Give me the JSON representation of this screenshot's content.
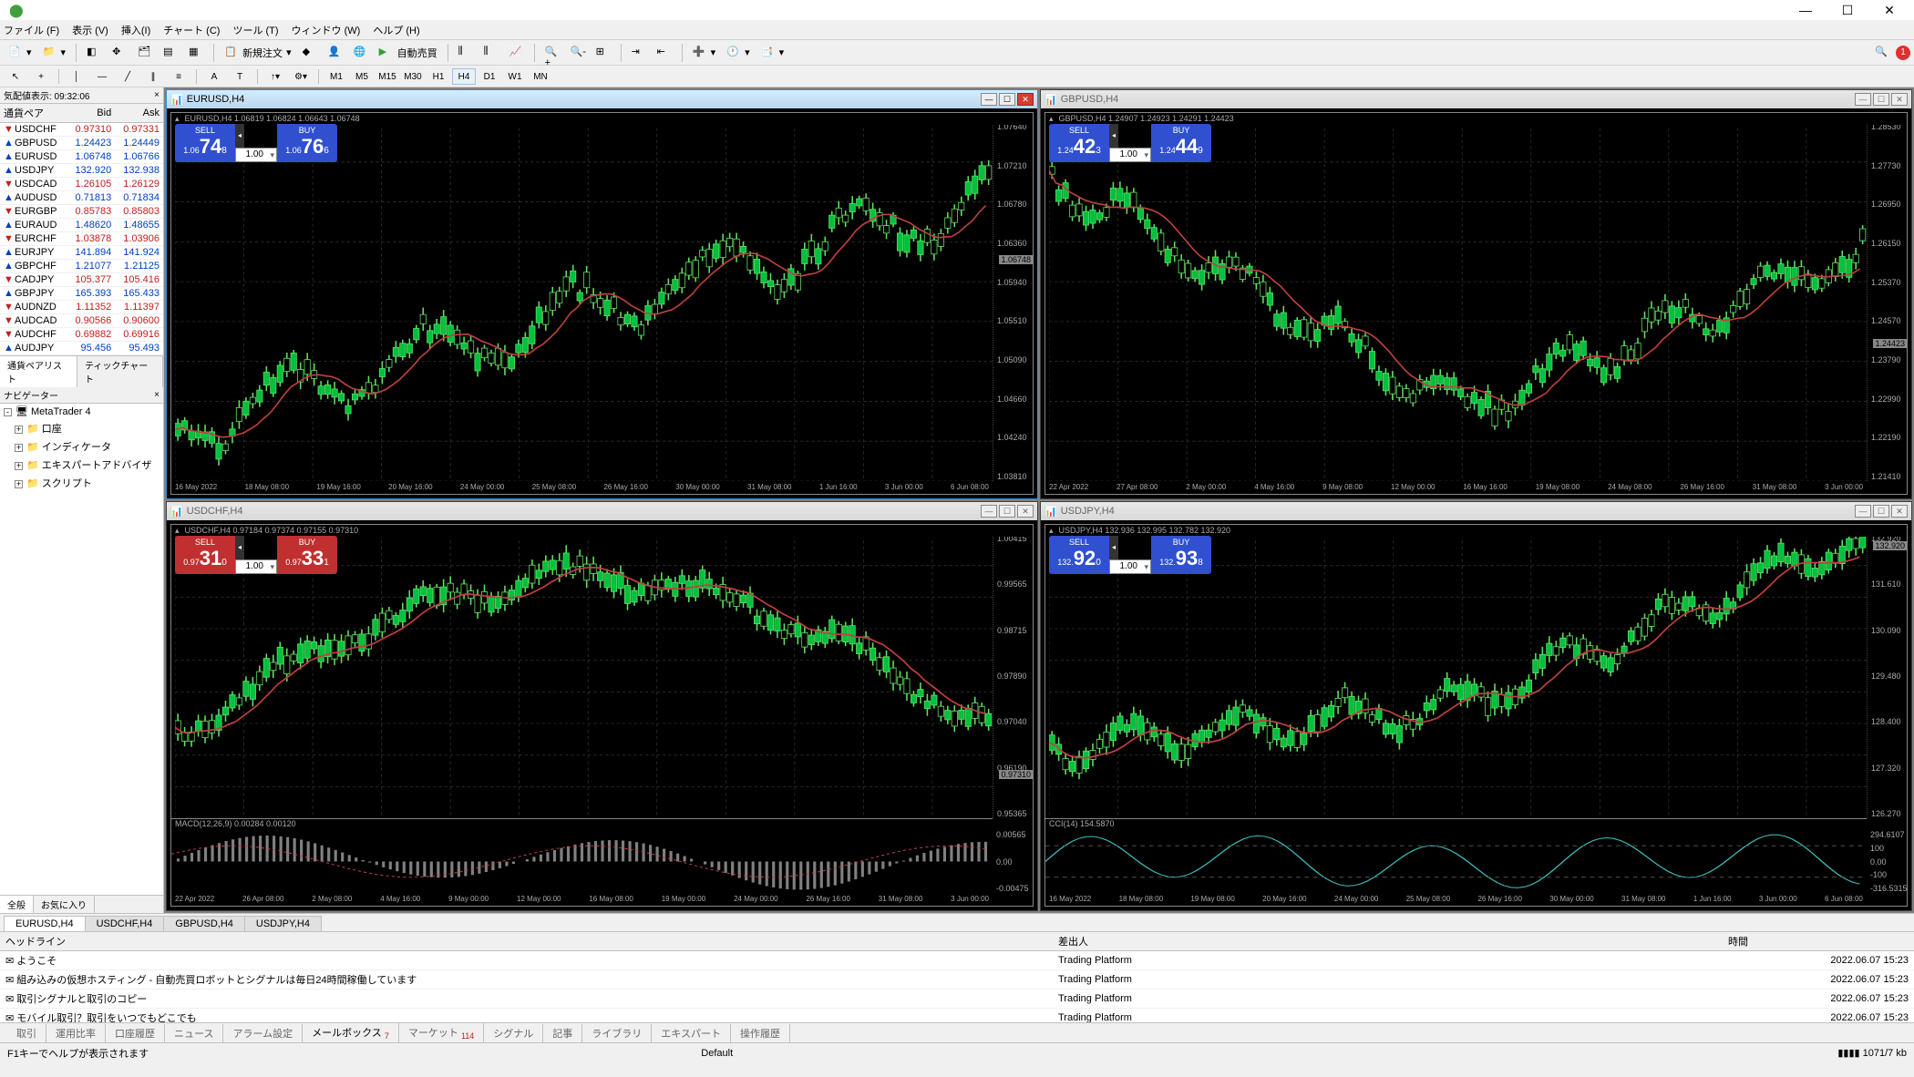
{
  "colors": {
    "up": "#00c040",
    "down": "#e04040",
    "bg": "#000000",
    "grid": "#303030",
    "ma": "#c04040",
    "wick": "#60e060",
    "blue": "#3050d0",
    "red": "#c03030",
    "cci": "#40c0c0"
  },
  "titlebar": {
    "min": "—",
    "max": "☐",
    "close": "✕"
  },
  "menu": [
    "ファイル (F)",
    "表示 (V)",
    "挿入(I)",
    "チャート (C)",
    "ツール (T)",
    "ウィンドウ (W)",
    "ヘルプ (H)"
  ],
  "toolbar1": {
    "new_order": "新規注文",
    "auto_trade": "自動売買",
    "badge": "1"
  },
  "timeframes": [
    "M1",
    "M5",
    "M15",
    "M30",
    "H1",
    "H4",
    "D1",
    "W1",
    "MN"
  ],
  "tf_active": "H4",
  "market": {
    "title": "気配値表示: 09:32:06",
    "cols": [
      "通貨ペア",
      "Bid",
      "Ask"
    ],
    "rows": [
      {
        "sym": "USDCHF",
        "bid": "0.97310",
        "ask": "0.97331",
        "dir": "down"
      },
      {
        "sym": "GBPUSD",
        "bid": "1.24423",
        "ask": "1.24449",
        "dir": "up"
      },
      {
        "sym": "EURUSD",
        "bid": "1.06748",
        "ask": "1.06766",
        "dir": "up"
      },
      {
        "sym": "USDJPY",
        "bid": "132.920",
        "ask": "132.938",
        "dir": "up"
      },
      {
        "sym": "USDCAD",
        "bid": "1.26105",
        "ask": "1.26129",
        "dir": "down"
      },
      {
        "sym": "AUDUSD",
        "bid": "0.71813",
        "ask": "0.71834",
        "dir": "up"
      },
      {
        "sym": "EURGBP",
        "bid": "0.85783",
        "ask": "0.85803",
        "dir": "down"
      },
      {
        "sym": "EURAUD",
        "bid": "1.48620",
        "ask": "1.48655",
        "dir": "up"
      },
      {
        "sym": "EURCHF",
        "bid": "1.03878",
        "ask": "1.03906",
        "dir": "down"
      },
      {
        "sym": "EURJPY",
        "bid": "141.894",
        "ask": "141.924",
        "dir": "up"
      },
      {
        "sym": "GBPCHF",
        "bid": "1.21077",
        "ask": "1.21125",
        "dir": "up"
      },
      {
        "sym": "CADJPY",
        "bid": "105.377",
        "ask": "105.416",
        "dir": "down"
      },
      {
        "sym": "GBPJPY",
        "bid": "165.393",
        "ask": "165.433",
        "dir": "up"
      },
      {
        "sym": "AUDNZD",
        "bid": "1.11352",
        "ask": "1.11397",
        "dir": "down"
      },
      {
        "sym": "AUDCAD",
        "bid": "0.90566",
        "ask": "0.90600",
        "dir": "down"
      },
      {
        "sym": "AUDCHF",
        "bid": "0.69882",
        "ask": "0.69916",
        "dir": "down"
      },
      {
        "sym": "AUDJPY",
        "bid": "95.456",
        "ask": "95.493",
        "dir": "up"
      }
    ],
    "tabs": [
      "通貨ペアリスト",
      "ティックチャート"
    ]
  },
  "navigator": {
    "title": "ナビゲーター",
    "root": "MetaTrader 4",
    "items": [
      "口座",
      "インディケータ",
      "エキスパートアドバイザ",
      "スクリプト"
    ],
    "tabs": [
      "全般",
      "お気に入り"
    ]
  },
  "charts": [
    {
      "id": "eurusd",
      "title": "EURUSD,H4",
      "info": "EURUSD,H4  1.06819 1.06824 1.06643 1.06748",
      "active": true,
      "sell": {
        "lbl": "SELL",
        "pre": "1.06",
        "big": "74",
        "sup": "8",
        "style": "blue"
      },
      "buy": {
        "lbl": "BUY",
        "pre": "1.06",
        "big": "76",
        "sup": "6",
        "style": "blue"
      },
      "vol": "1.00",
      "ylabels": [
        "1.07640",
        "1.07210",
        "1.06780",
        "1.06360",
        "1.05940",
        "1.05510",
        "1.05090",
        "1.04660",
        "1.04240",
        "1.03810"
      ],
      "price_tag": {
        "val": "1.06748",
        "pct": 35
      },
      "xlabels": [
        "16 May 2022",
        "18 May 08:00",
        "19 May 16:00",
        "20 May 16:00",
        "24 May 00:00",
        "25 May 08:00",
        "26 May 16:00",
        "30 May 00:00",
        "31 May 08:00",
        "1 Jun 16:00",
        "3 Jun 00:00",
        "6 Jun 08:00"
      ],
      "shape": "uptrend",
      "ma": true
    },
    {
      "id": "gbpusd",
      "title": "GBPUSD,H4",
      "info": "GBPUSD,H4  1.24907 1.24923 1.24291 1.24423",
      "active": false,
      "sell": {
        "lbl": "SELL",
        "pre": "1.24",
        "big": "42",
        "sup": "3",
        "style": "blue"
      },
      "buy": {
        "lbl": "BUY",
        "pre": "1.24",
        "big": "44",
        "sup": "9",
        "style": "blue"
      },
      "vol": "1.00",
      "ylabels": [
        "1.28530",
        "1.27730",
        "1.26950",
        "1.26150",
        "1.25370",
        "1.24570",
        "1.23790",
        "1.22990",
        "1.22190",
        "1.21410"
      ],
      "price_tag": {
        "val": "1.24423",
        "pct": 57
      },
      "xlabels": [
        "22 Apr 2022",
        "27 Apr 08:00",
        "2 May 00:00",
        "4 May 16:00",
        "9 May 08:00",
        "12 May 00:00",
        "16 May 16:00",
        "19 May 08:00",
        "24 May 08:00",
        "26 May 16:00",
        "31 May 08:00",
        "3 Jun 00:00"
      ],
      "shape": "vshape",
      "ma": true
    },
    {
      "id": "usdchf",
      "title": "USDCHF,H4",
      "info": "USDCHF,H4  0.97184 0.97374 0.97155 0.97310",
      "active": false,
      "sell": {
        "lbl": "SELL",
        "pre": "0.97",
        "big": "31",
        "sup": "0",
        "style": "red"
      },
      "buy": {
        "lbl": "BUY",
        "pre": "0.97",
        "big": "33",
        "sup": "1",
        "style": "red"
      },
      "vol": "1.00",
      "ylabels": [
        "1.00415",
        "0.99565",
        "0.98715",
        "0.97890",
        "0.97040",
        "0.96190",
        "0.95365"
      ],
      "price_tag": {
        "val": "0.97310",
        "pct": 62
      },
      "xlabels": [
        "22 Apr 2022",
        "26 Apr 08:00",
        "2 May 08:00",
        "4 May 16:00",
        "9 May 00:00",
        "12 May 00:00",
        "16 May 08:00",
        "19 May 00:00",
        "24 May 00:00",
        "26 May 16:00",
        "31 May 08:00",
        "3 Jun 00:00"
      ],
      "shape": "humpdown",
      "ma": false,
      "indicator": {
        "name": "MACD(12,26,9)",
        "vals": "0.00284 0.00120",
        "axis": [
          "0.00565",
          "0.00",
          "-0.00475"
        ],
        "type": "macd"
      }
    },
    {
      "id": "usdjpy",
      "title": "USDJPY,H4",
      "info": "USDJPY,H4  132.936 132.995 132.782 132.920",
      "active": false,
      "sell": {
        "lbl": "SELL",
        "pre": "132.",
        "big": "92",
        "sup": "0",
        "style": "blue"
      },
      "buy": {
        "lbl": "BUY",
        "pre": "132.",
        "big": "93",
        "sup": "8",
        "style": "blue"
      },
      "vol": "1.00",
      "ylabels": [
        "132.920",
        "131.610",
        "130.090",
        "129.480",
        "128.400",
        "127.320",
        "126.270"
      ],
      "price_tag": {
        "val": "132.920",
        "pct": 2
      },
      "xlabels": [
        "16 May 2022",
        "18 May 08:00",
        "19 May 08:00",
        "20 May 16:00",
        "24 May 00:00",
        "25 May 08:00",
        "26 May 16:00",
        "30 May 00:00",
        "31 May 08:00",
        "1 Jun 16:00",
        "3 Jun 00:00",
        "6 Jun 08:00"
      ],
      "shape": "rise",
      "ma": false,
      "indicator": {
        "name": "CCI(14)",
        "vals": "154.5870",
        "axis": [
          "294.6107",
          "100",
          "0.00",
          "-100",
          "-316.5315"
        ],
        "type": "cci"
      }
    }
  ],
  "chart_tabs": [
    "EURUSD,H4",
    "USDCHF,H4",
    "GBPUSD,H4",
    "USDJPY,H4"
  ],
  "chart_tab_active": "EURUSD,H4",
  "news": {
    "cols": [
      "ヘッドライン",
      "差出人",
      "時間"
    ],
    "rows": [
      {
        "h": "ようこそ",
        "s": "Trading Platform",
        "t": "2022.06.07 15:23"
      },
      {
        "h": "組み込みの仮想ホスティング - 自動売買ロボットとシグナルは毎日24時間稼働しています",
        "s": "Trading Platform",
        "t": "2022.06.07 15:23"
      },
      {
        "h": "取引シグナルと取引のコピー",
        "s": "Trading Platform",
        "t": "2022.06.07 15:23"
      },
      {
        "h": "モバイル取引？取引をいつでもどこでも",
        "s": "Trading Platform",
        "t": "2022.06.07 15:23"
      }
    ]
  },
  "terminal_tabs": [
    "取引",
    "運用比率",
    "口座履歴",
    "ニュース",
    "アラーム設定",
    "メールボックス",
    "マーケット",
    "シグナル",
    "記事",
    "ライブラリ",
    "エキスパート",
    "操作履歴"
  ],
  "terminal_active": "メールボックス",
  "terminal_badges": {
    "メールボックス": "7",
    "マーケット": "114"
  },
  "status": {
    "help": "F1キーでヘルプが表示されます",
    "profile": "Default",
    "conn": "1071/7 kb"
  }
}
